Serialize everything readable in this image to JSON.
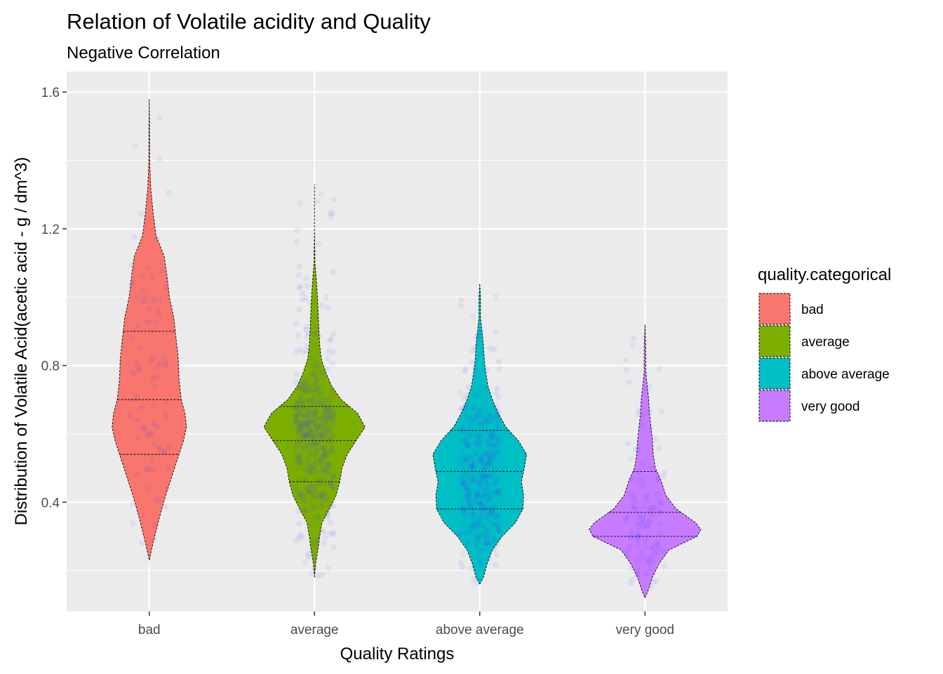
{
  "chart_data": {
    "type": "violin",
    "title": "Relation of Volatile acidity and Quality",
    "subtitle": "Negative Correlation",
    "xlabel": "Quality Ratings",
    "ylabel": "Distribution of Volatile Acid(acetic acid - g / dm^3)",
    "categories": [
      "bad",
      "average",
      "above average",
      "very good"
    ],
    "colors": [
      "#F8766D",
      "#7CAE00",
      "#00BFC4",
      "#C77CFF"
    ],
    "ylim": [
      0.08,
      1.66
    ],
    "yticks": [
      0.4,
      0.8,
      1.2,
      1.6
    ],
    "yticklabels": [
      "0.4",
      "0.8",
      "1.2",
      "1.6"
    ],
    "grid": true,
    "legend": {
      "title": "quality.categorical",
      "position": "right",
      "items": [
        "bad",
        "average",
        "above average",
        "very good"
      ]
    },
    "series": [
      {
        "name": "bad",
        "min": 0.23,
        "max": 1.58,
        "quantiles": [
          0.54,
          0.7,
          0.9
        ],
        "density": [
          [
            0.23,
            0.0
          ],
          [
            0.28,
            0.05
          ],
          [
            0.35,
            0.13
          ],
          [
            0.42,
            0.22
          ],
          [
            0.48,
            0.31
          ],
          [
            0.54,
            0.4
          ],
          [
            0.58,
            0.46
          ],
          [
            0.62,
            0.5
          ],
          [
            0.66,
            0.48
          ],
          [
            0.7,
            0.43
          ],
          [
            0.76,
            0.4
          ],
          [
            0.82,
            0.39
          ],
          [
            0.88,
            0.36
          ],
          [
            0.94,
            0.33
          ],
          [
            1.0,
            0.27
          ],
          [
            1.06,
            0.24
          ],
          [
            1.12,
            0.2
          ],
          [
            1.18,
            0.09
          ],
          [
            1.25,
            0.05
          ],
          [
            1.32,
            0.02
          ],
          [
            1.4,
            0.005
          ],
          [
            1.5,
            0.004
          ],
          [
            1.58,
            0.0
          ]
        ]
      },
      {
        "name": "average",
        "min": 0.18,
        "max": 1.33,
        "quantiles": [
          0.46,
          0.58,
          0.68
        ],
        "density": [
          [
            0.18,
            0.0
          ],
          [
            0.22,
            0.015
          ],
          [
            0.26,
            0.045
          ],
          [
            0.3,
            0.07
          ],
          [
            0.34,
            0.1
          ],
          [
            0.38,
            0.2
          ],
          [
            0.42,
            0.29
          ],
          [
            0.46,
            0.34
          ],
          [
            0.5,
            0.37
          ],
          [
            0.54,
            0.44
          ],
          [
            0.58,
            0.56
          ],
          [
            0.62,
            0.68
          ],
          [
            0.66,
            0.58
          ],
          [
            0.7,
            0.36
          ],
          [
            0.74,
            0.23
          ],
          [
            0.78,
            0.15
          ],
          [
            0.82,
            0.09
          ],
          [
            0.86,
            0.07
          ],
          [
            0.9,
            0.06
          ],
          [
            0.95,
            0.05
          ],
          [
            1.0,
            0.04
          ],
          [
            1.05,
            0.025
          ],
          [
            1.1,
            0.006
          ],
          [
            1.2,
            0.0
          ],
          [
            1.33,
            0.0
          ]
        ]
      },
      {
        "name": "above average",
        "min": 0.16,
        "max": 1.04,
        "quantiles": [
          0.38,
          0.49,
          0.61
        ],
        "density": [
          [
            0.16,
            0.0
          ],
          [
            0.18,
            0.05
          ],
          [
            0.22,
            0.1
          ],
          [
            0.26,
            0.17
          ],
          [
            0.3,
            0.3
          ],
          [
            0.34,
            0.48
          ],
          [
            0.38,
            0.58
          ],
          [
            0.42,
            0.59
          ],
          [
            0.46,
            0.56
          ],
          [
            0.5,
            0.6
          ],
          [
            0.54,
            0.63
          ],
          [
            0.58,
            0.52
          ],
          [
            0.62,
            0.35
          ],
          [
            0.66,
            0.25
          ],
          [
            0.7,
            0.17
          ],
          [
            0.74,
            0.11
          ],
          [
            0.78,
            0.08
          ],
          [
            0.82,
            0.06
          ],
          [
            0.86,
            0.05
          ],
          [
            0.9,
            0.03
          ],
          [
            0.94,
            0.01
          ],
          [
            1.0,
            0.01
          ],
          [
            1.04,
            0.0
          ]
        ]
      },
      {
        "name": "very good",
        "min": 0.12,
        "max": 0.92,
        "quantiles": [
          0.3,
          0.37,
          0.49
        ],
        "density": [
          [
            0.12,
            0.0
          ],
          [
            0.14,
            0.04
          ],
          [
            0.18,
            0.1
          ],
          [
            0.22,
            0.19
          ],
          [
            0.26,
            0.32
          ],
          [
            0.3,
            0.7
          ],
          [
            0.32,
            0.75
          ],
          [
            0.34,
            0.68
          ],
          [
            0.38,
            0.42
          ],
          [
            0.42,
            0.28
          ],
          [
            0.46,
            0.22
          ],
          [
            0.5,
            0.14
          ],
          [
            0.54,
            0.11
          ],
          [
            0.58,
            0.1
          ],
          [
            0.62,
            0.08
          ],
          [
            0.66,
            0.06
          ],
          [
            0.7,
            0.05
          ],
          [
            0.74,
            0.03
          ],
          [
            0.78,
            0.01
          ],
          [
            0.85,
            0.01
          ],
          [
            0.92,
            0.0
          ]
        ]
      }
    ]
  }
}
